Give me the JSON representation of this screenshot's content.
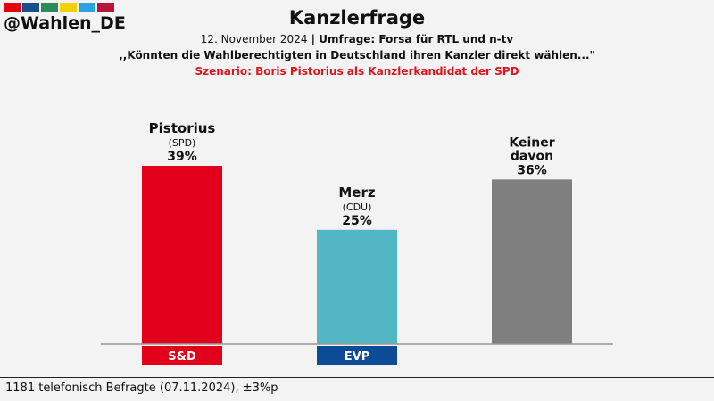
{
  "handle": "@Wahlen_DE",
  "strip_colors": [
    "#e3000f",
    "#1a4f8b",
    "#2e8b57",
    "#f5d000",
    "#2aa3e0",
    "#b5163a"
  ],
  "header": {
    "title": "Kanzlerfrage",
    "subtitle_date": "12. November 2024",
    "subtitle_sep": " | ",
    "subtitle_source": "Umfrage: Forsa für RTL und n-tv",
    "question": ",,Könnten die Wahlberechtigten in Deutschland ihren Kanzler direkt wählen...\"",
    "scenario": "Szenario: Boris Pistorius als Kanzlerkandidat der SPD"
  },
  "footer": "1181 telefonisch Befragte (07.11.2024), ±3%p",
  "chart_data": {
    "type": "bar",
    "unit": "%",
    "ylim": [
      0,
      50
    ],
    "categories": [
      "Pistorius",
      "Merz",
      "Keiner davon"
    ],
    "series": [
      {
        "values": [
          39,
          25,
          36
        ],
        "colors": [
          "#e3001b",
          "#52b6c4",
          "#7f7f7f"
        ],
        "labels": [
          "39%",
          "25%",
          "36%"
        ],
        "parties": [
          "(SPD)",
          "(CDU)",
          ""
        ],
        "groups": [
          "S&D",
          "EVP",
          ""
        ],
        "group_colors": [
          "#e3001b",
          "#0e4b97",
          ""
        ]
      }
    ]
  }
}
